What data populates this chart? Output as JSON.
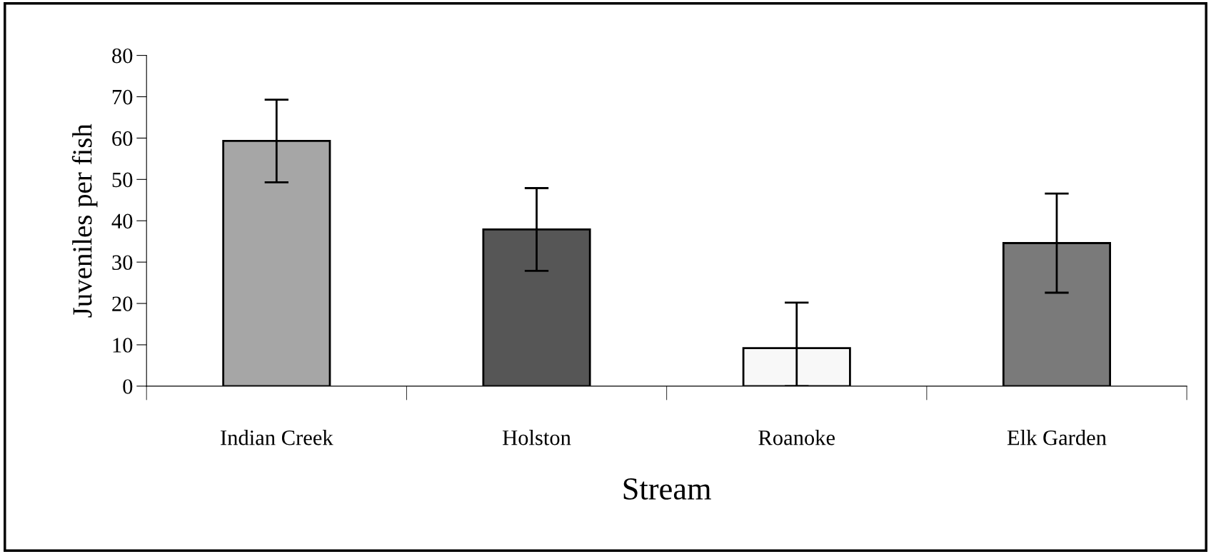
{
  "chart_data": {
    "type": "bar",
    "xlabel": "Stream",
    "ylabel": "Juveniles per fish",
    "categories": [
      "Indian Creek",
      "Holston",
      "Roanoke",
      "Elk Garden"
    ],
    "values": [
      59.3,
      37.9,
      9.2,
      34.6
    ],
    "errors": [
      10,
      10,
      [
        0,
        20.2
      ],
      12
    ],
    "colors": [
      "#a6a6a6",
      "#565656",
      "#f8f8f8",
      "#7a7a7a"
    ],
    "ylim": [
      0,
      80
    ],
    "yticks": [
      0,
      10,
      20,
      30,
      40,
      50,
      60,
      70,
      80
    ],
    "grid": false,
    "legend": false
  }
}
